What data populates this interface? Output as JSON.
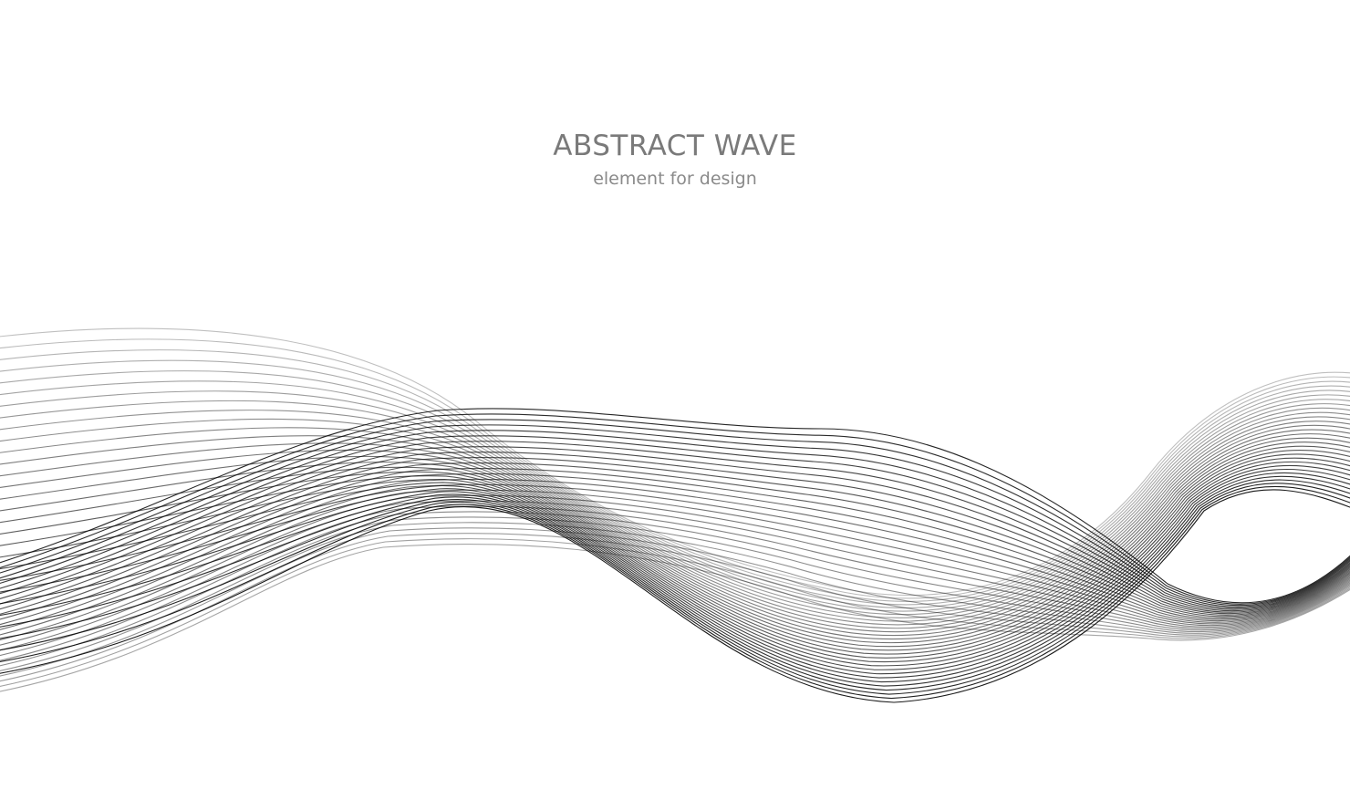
{
  "heading": {
    "title": "ABSTRACT WAVE",
    "subtitle": "element for design",
    "text_color": "#7a7a7a"
  },
  "artwork": {
    "description_icon": "abstract-wave-lines",
    "line_color": "#000000",
    "background": "#ffffff"
  }
}
